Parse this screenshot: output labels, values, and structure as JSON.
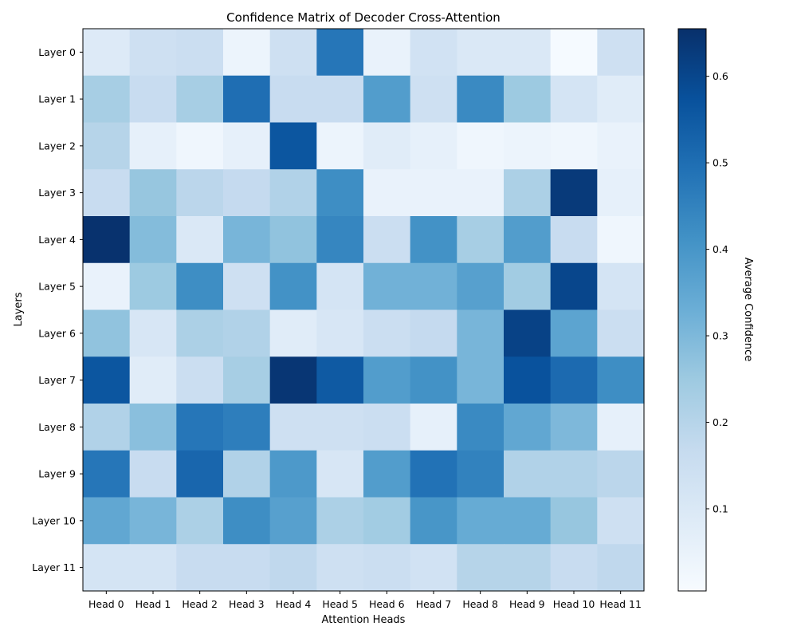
{
  "chart_data": {
    "type": "heatmap",
    "title": "Confidence Matrix of Decoder Cross-Attention",
    "xlabel": "Attention Heads",
    "ylabel": "Layers",
    "x_categories": [
      "Head 0",
      "Head 1",
      "Head 2",
      "Head 3",
      "Head 4",
      "Head 5",
      "Head 6",
      "Head 7",
      "Head 8",
      "Head 9",
      "Head 10",
      "Head 11"
    ],
    "y_categories": [
      "Layer 0",
      "Layer 1",
      "Layer 2",
      "Layer 3",
      "Layer 4",
      "Layer 5",
      "Layer 6",
      "Layer 7",
      "Layer 8",
      "Layer 9",
      "Layer 10",
      "Layer 11"
    ],
    "values": [
      [
        0.09,
        0.14,
        0.15,
        0.04,
        0.14,
        0.48,
        0.05,
        0.13,
        0.1,
        0.1,
        0.01,
        0.14
      ],
      [
        0.23,
        0.16,
        0.23,
        0.5,
        0.16,
        0.16,
        0.38,
        0.14,
        0.43,
        0.25,
        0.12,
        0.08
      ],
      [
        0.2,
        0.06,
        0.03,
        0.06,
        0.56,
        0.04,
        0.08,
        0.06,
        0.03,
        0.04,
        0.03,
        0.05
      ],
      [
        0.16,
        0.26,
        0.19,
        0.17,
        0.21,
        0.42,
        0.05,
        0.05,
        0.05,
        0.22,
        0.63,
        0.06
      ],
      [
        0.65,
        0.29,
        0.1,
        0.31,
        0.27,
        0.44,
        0.15,
        0.41,
        0.23,
        0.38,
        0.16,
        0.03
      ],
      [
        0.05,
        0.25,
        0.42,
        0.14,
        0.41,
        0.12,
        0.32,
        0.32,
        0.37,
        0.24,
        0.6,
        0.12
      ],
      [
        0.27,
        0.11,
        0.22,
        0.21,
        0.08,
        0.11,
        0.15,
        0.17,
        0.31,
        0.61,
        0.36,
        0.15
      ],
      [
        0.56,
        0.08,
        0.15,
        0.23,
        0.64,
        0.55,
        0.38,
        0.41,
        0.31,
        0.57,
        0.51,
        0.42
      ],
      [
        0.21,
        0.28,
        0.48,
        0.46,
        0.14,
        0.14,
        0.15,
        0.06,
        0.43,
        0.35,
        0.3,
        0.06
      ],
      [
        0.48,
        0.16,
        0.52,
        0.21,
        0.39,
        0.11,
        0.38,
        0.49,
        0.45,
        0.21,
        0.21,
        0.19
      ],
      [
        0.35,
        0.31,
        0.22,
        0.42,
        0.37,
        0.22,
        0.24,
        0.4,
        0.34,
        0.34,
        0.26,
        0.14
      ],
      [
        0.12,
        0.12,
        0.16,
        0.16,
        0.18,
        0.14,
        0.15,
        0.13,
        0.2,
        0.2,
        0.16,
        0.18
      ]
    ],
    "vmin": 0.005,
    "vmax": 0.655,
    "colormap": "Blues",
    "colorbar": {
      "label": "Average Confidence",
      "ticks": [
        0.1,
        0.2,
        0.3,
        0.4,
        0.5,
        0.6
      ],
      "tick_labels": [
        "0.1",
        "0.2",
        "0.3",
        "0.4",
        "0.5",
        "0.6"
      ]
    }
  }
}
